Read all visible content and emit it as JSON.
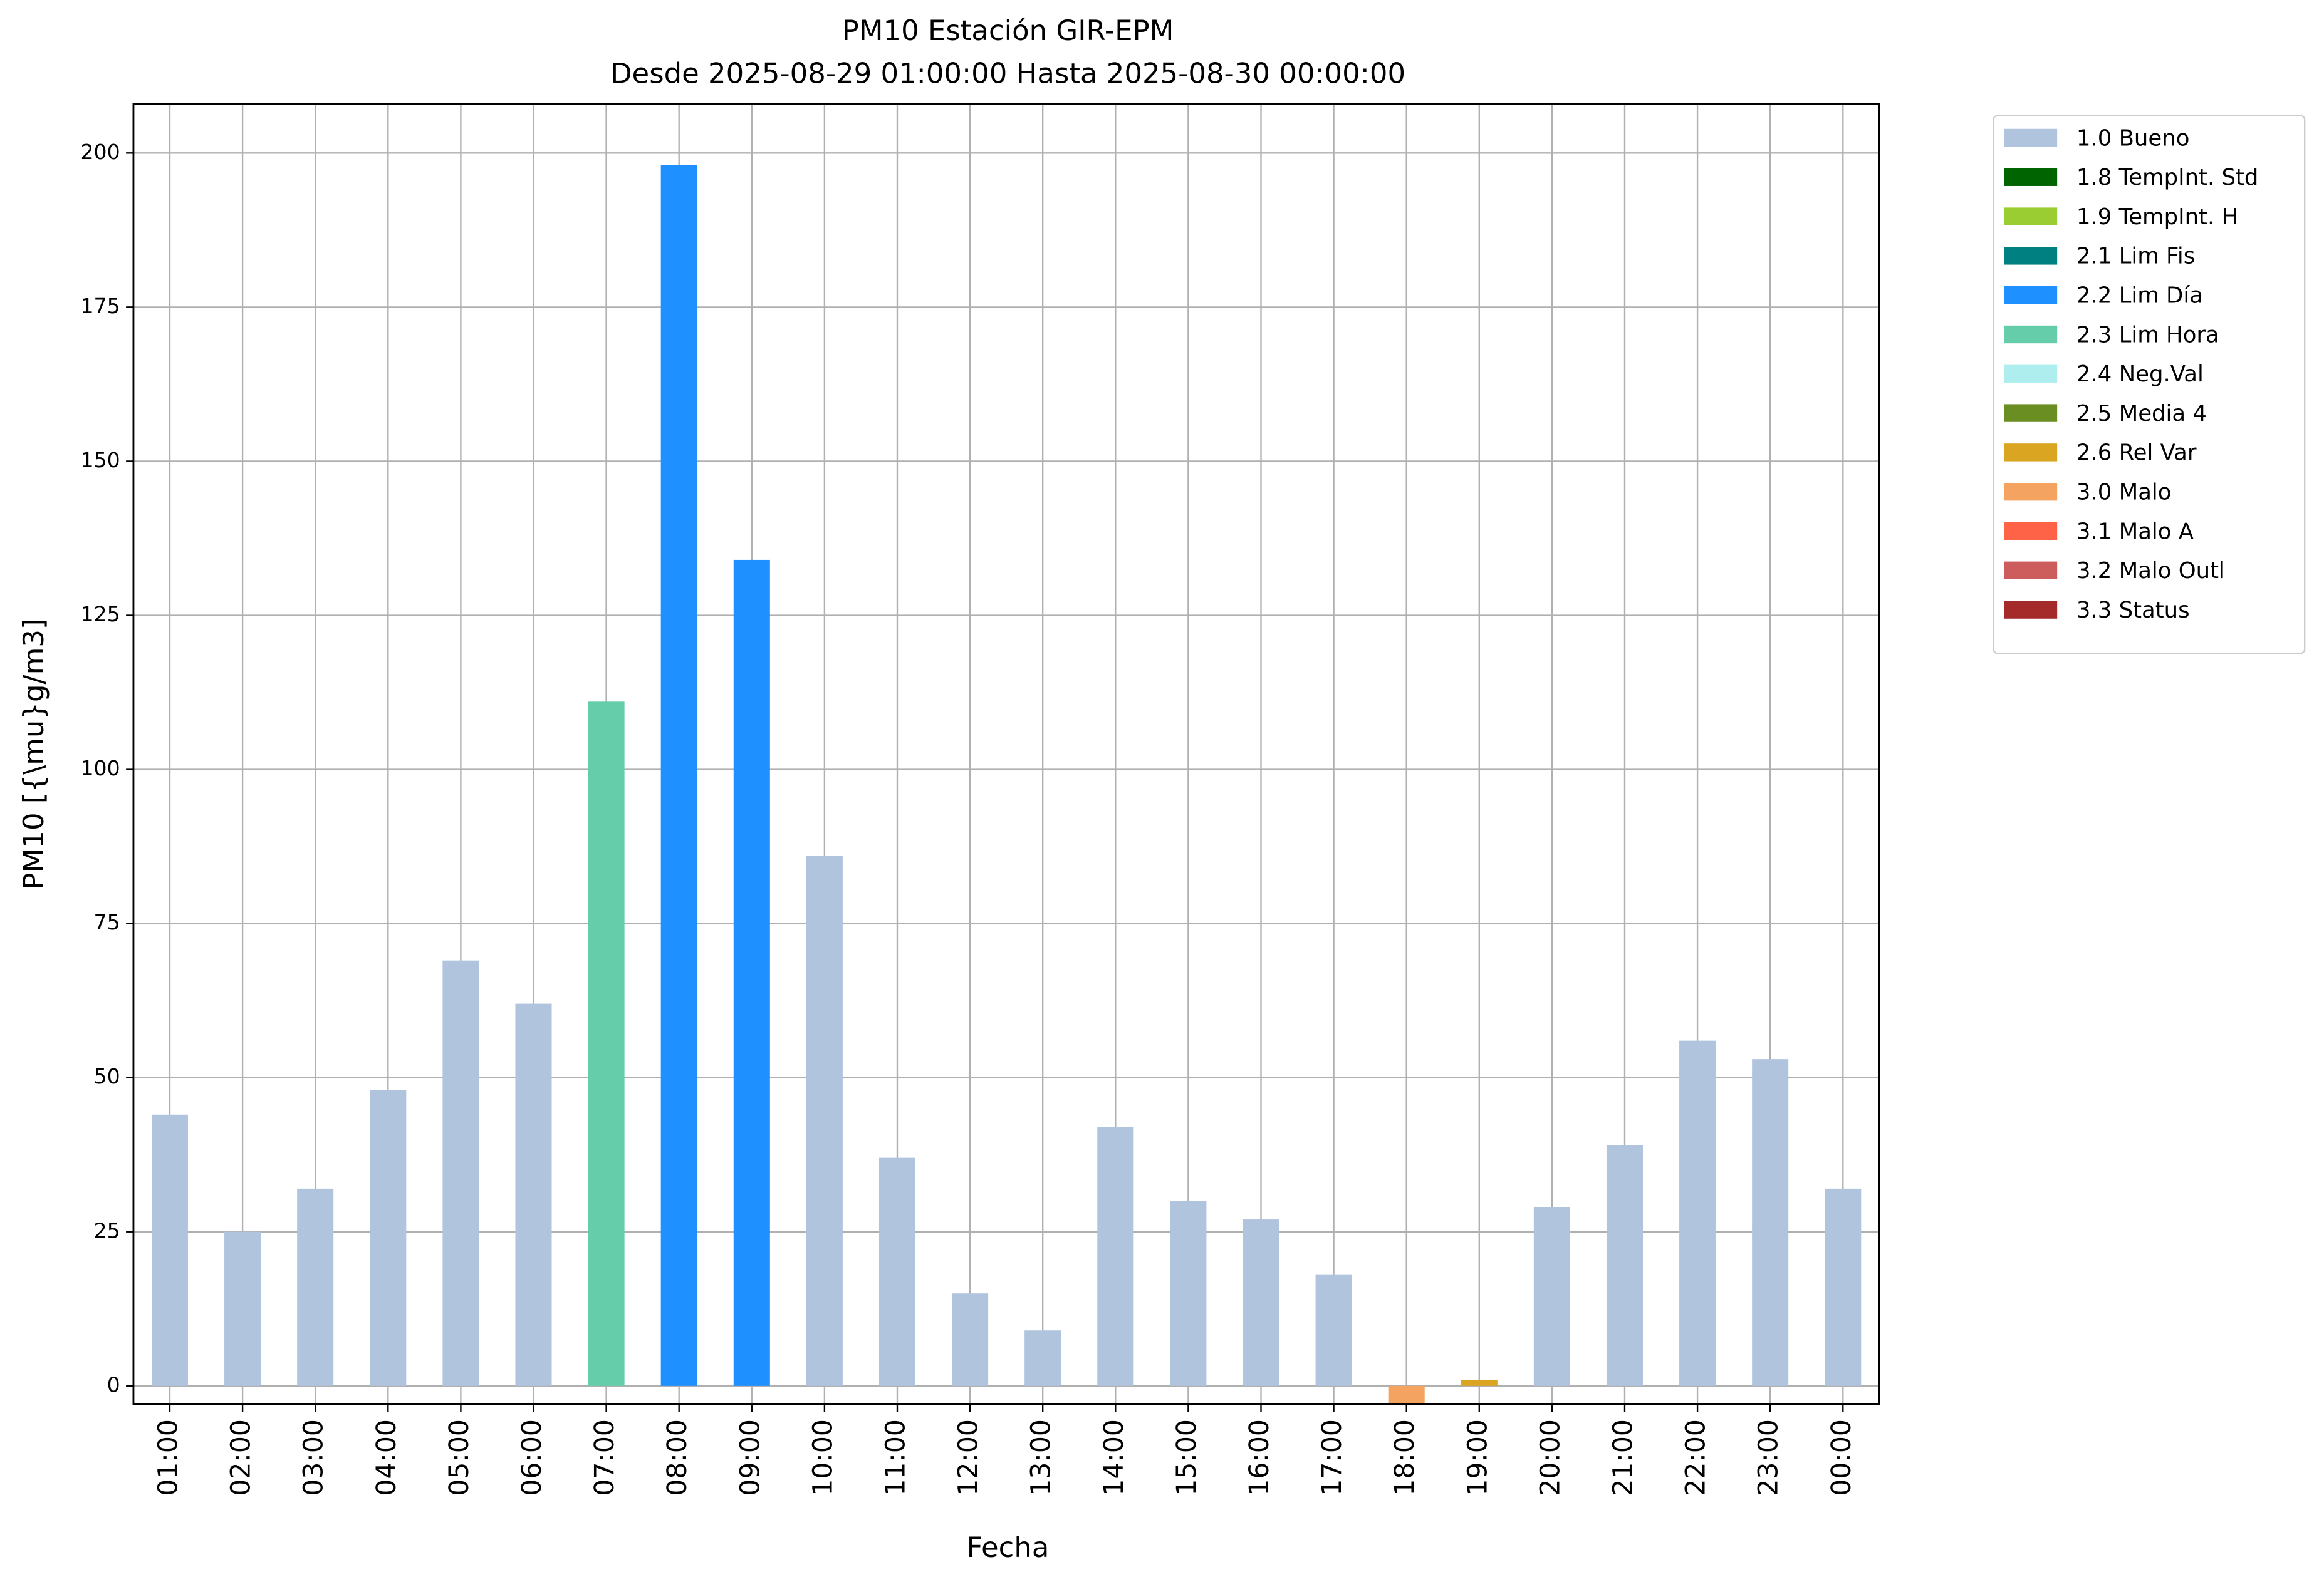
{
  "chart_data": {
    "type": "bar",
    "title": "PM10 Estación GIR-EPM",
    "subtitle": "Desde 2025-08-29 01:00:00 Hasta 2025-08-30 00:00:00",
    "x_label": "Fecha",
    "y_label": "PM10 [{\\mu}g/m3]",
    "categories": [
      "01:00",
      "02:00",
      "03:00",
      "04:00",
      "05:00",
      "06:00",
      "07:00",
      "08:00",
      "09:00",
      "10:00",
      "11:00",
      "12:00",
      "13:00",
      "14:00",
      "15:00",
      "16:00",
      "17:00",
      "18:00",
      "19:00",
      "20:00",
      "21:00",
      "22:00",
      "23:00",
      "00:00"
    ],
    "series": [
      {
        "name": "1.0 Bueno",
        "color": "#b0c4de",
        "values": [
          44,
          25,
          32,
          48,
          69,
          62,
          null,
          null,
          null,
          86,
          37,
          15,
          9,
          42,
          30,
          27,
          18,
          null,
          null,
          29,
          39,
          56,
          53,
          32
        ]
      },
      {
        "name": "1.8 TempInt. Std",
        "color": "#006400",
        "values": [
          null,
          null,
          null,
          null,
          null,
          null,
          null,
          null,
          null,
          null,
          null,
          null,
          null,
          null,
          null,
          null,
          null,
          null,
          null,
          null,
          null,
          null,
          null,
          null
        ]
      },
      {
        "name": "1.9 TempInt. H",
        "color": "#9acd32",
        "values": [
          null,
          null,
          null,
          null,
          null,
          null,
          null,
          null,
          null,
          null,
          null,
          null,
          null,
          null,
          null,
          null,
          null,
          null,
          null,
          null,
          null,
          null,
          null,
          null
        ]
      },
      {
        "name": "2.1 Lim Fis",
        "color": "#008080",
        "values": [
          null,
          null,
          null,
          null,
          null,
          null,
          null,
          null,
          null,
          null,
          null,
          null,
          null,
          null,
          null,
          null,
          null,
          null,
          null,
          null,
          null,
          null,
          null,
          null
        ]
      },
      {
        "name": "2.2 Lim Día",
        "color": "#1e90ff",
        "values": [
          null,
          null,
          null,
          null,
          null,
          null,
          null,
          198,
          134,
          null,
          null,
          null,
          null,
          null,
          null,
          null,
          null,
          null,
          null,
          null,
          null,
          null,
          null,
          null
        ]
      },
      {
        "name": "2.3 Lim Hora",
        "color": "#66cdaa",
        "values": [
          null,
          null,
          null,
          null,
          null,
          null,
          111,
          null,
          null,
          null,
          null,
          null,
          null,
          null,
          null,
          null,
          null,
          null,
          null,
          null,
          null,
          null,
          null,
          null
        ]
      },
      {
        "name": "2.4 Neg.Val",
        "color": "#afeeee",
        "values": [
          null,
          null,
          null,
          null,
          null,
          null,
          null,
          null,
          null,
          null,
          null,
          null,
          null,
          null,
          null,
          null,
          null,
          null,
          null,
          null,
          null,
          null,
          null,
          null
        ]
      },
      {
        "name": "2.5 Media 4",
        "color": "#6b8e23",
        "values": [
          null,
          null,
          null,
          null,
          null,
          null,
          null,
          null,
          null,
          null,
          null,
          null,
          null,
          null,
          null,
          null,
          null,
          null,
          null,
          null,
          null,
          null,
          null,
          null
        ]
      },
      {
        "name": "2.6 Rel Var",
        "color": "#daa520",
        "values": [
          null,
          null,
          null,
          null,
          null,
          null,
          null,
          null,
          null,
          null,
          null,
          null,
          null,
          null,
          null,
          null,
          null,
          null,
          1,
          null,
          null,
          null,
          null,
          null
        ]
      },
      {
        "name": "3.0 Malo",
        "color": "#f4a460",
        "values": [
          null,
          null,
          null,
          null,
          null,
          null,
          null,
          null,
          null,
          null,
          null,
          null,
          null,
          null,
          null,
          null,
          null,
          -3,
          null,
          null,
          null,
          null,
          null,
          null
        ]
      },
      {
        "name": "3.1 Malo A",
        "color": "#ff6347",
        "values": [
          null,
          null,
          null,
          null,
          null,
          null,
          null,
          null,
          null,
          null,
          null,
          null,
          null,
          null,
          null,
          null,
          null,
          null,
          null,
          null,
          null,
          null,
          null,
          null
        ]
      },
      {
        "name": "3.2 Malo Outl",
        "color": "#cd5c5c",
        "values": [
          null,
          null,
          null,
          null,
          null,
          null,
          null,
          null,
          null,
          null,
          null,
          null,
          null,
          null,
          null,
          null,
          null,
          null,
          null,
          null,
          null,
          null,
          null,
          null
        ]
      },
      {
        "name": "3.3 Status",
        "color": "#a52a2a",
        "values": [
          null,
          null,
          null,
          null,
          null,
          null,
          null,
          null,
          null,
          null,
          null,
          null,
          null,
          null,
          null,
          null,
          null,
          null,
          null,
          null,
          null,
          null,
          null,
          null
        ]
      }
    ],
    "ylim": [
      -3,
      208
    ],
    "yticks": [
      0,
      25,
      50,
      75,
      100,
      125,
      150,
      175,
      200
    ],
    "grid": true,
    "legend": "outside-right"
  }
}
